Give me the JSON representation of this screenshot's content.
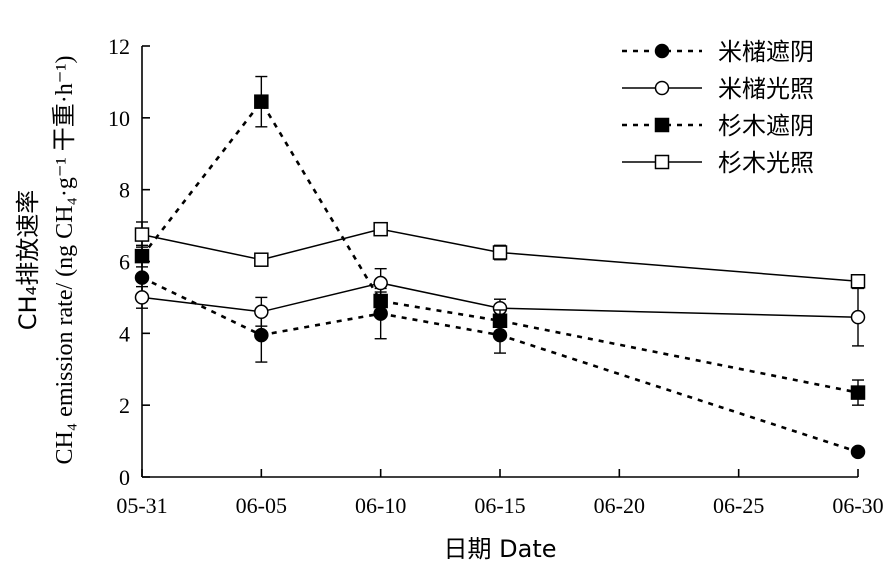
{
  "chart_data": {
    "type": "line",
    "xlabel": "日期 Date",
    "ylabel_cn": "CH₄排放速率",
    "ylabel_en": "CH₄ emission rate/ (ng CH₄·g⁻¹ 干重·h⁻¹)",
    "x_ticks": [
      "05-31",
      "06-05",
      "06-10",
      "06-15",
      "06-20",
      "06-25",
      "06-30"
    ],
    "xlim": [
      0,
      30
    ],
    "ylim": [
      0,
      12
    ],
    "y_ticks": [
      "0",
      "2",
      "4",
      "6",
      "8",
      "10",
      "12"
    ],
    "y_tick_values": [
      0,
      2,
      4,
      6,
      8,
      10,
      12
    ],
    "grid": false,
    "legend_position": "top-right",
    "series": [
      {
        "name": "米槠遮阴",
        "line": "dotted",
        "marker": "filled-circle",
        "x": [
          0,
          5,
          10,
          15,
          30
        ],
        "y": [
          5.55,
          3.95,
          4.55,
          3.95,
          0.7
        ],
        "err": [
          0.5,
          0.75,
          0.7,
          0.5,
          0.1
        ]
      },
      {
        "name": "米槠光照",
        "line": "solid",
        "marker": "open-circle",
        "x": [
          0,
          5,
          10,
          15,
          30
        ],
        "y": [
          5.0,
          4.6,
          5.4,
          4.7,
          4.45
        ],
        "err": [
          0.3,
          0.4,
          0.4,
          0.25,
          0.8
        ]
      },
      {
        "name": "杉木遮阴",
        "line": "dotted",
        "marker": "filled-square",
        "x": [
          0,
          5,
          10,
          15,
          30
        ],
        "y": [
          6.15,
          10.45,
          4.9,
          4.35,
          2.35
        ],
        "err": [
          0.3,
          0.7,
          0.25,
          0.3,
          0.35
        ]
      },
      {
        "name": "杉木光照",
        "line": "solid",
        "marker": "open-square",
        "x": [
          0,
          5,
          10,
          15,
          30
        ],
        "y": [
          6.75,
          6.05,
          6.9,
          6.25,
          5.45
        ],
        "err": [
          0.35,
          0.15,
          0.1,
          0.2,
          0.1
        ]
      }
    ]
  }
}
